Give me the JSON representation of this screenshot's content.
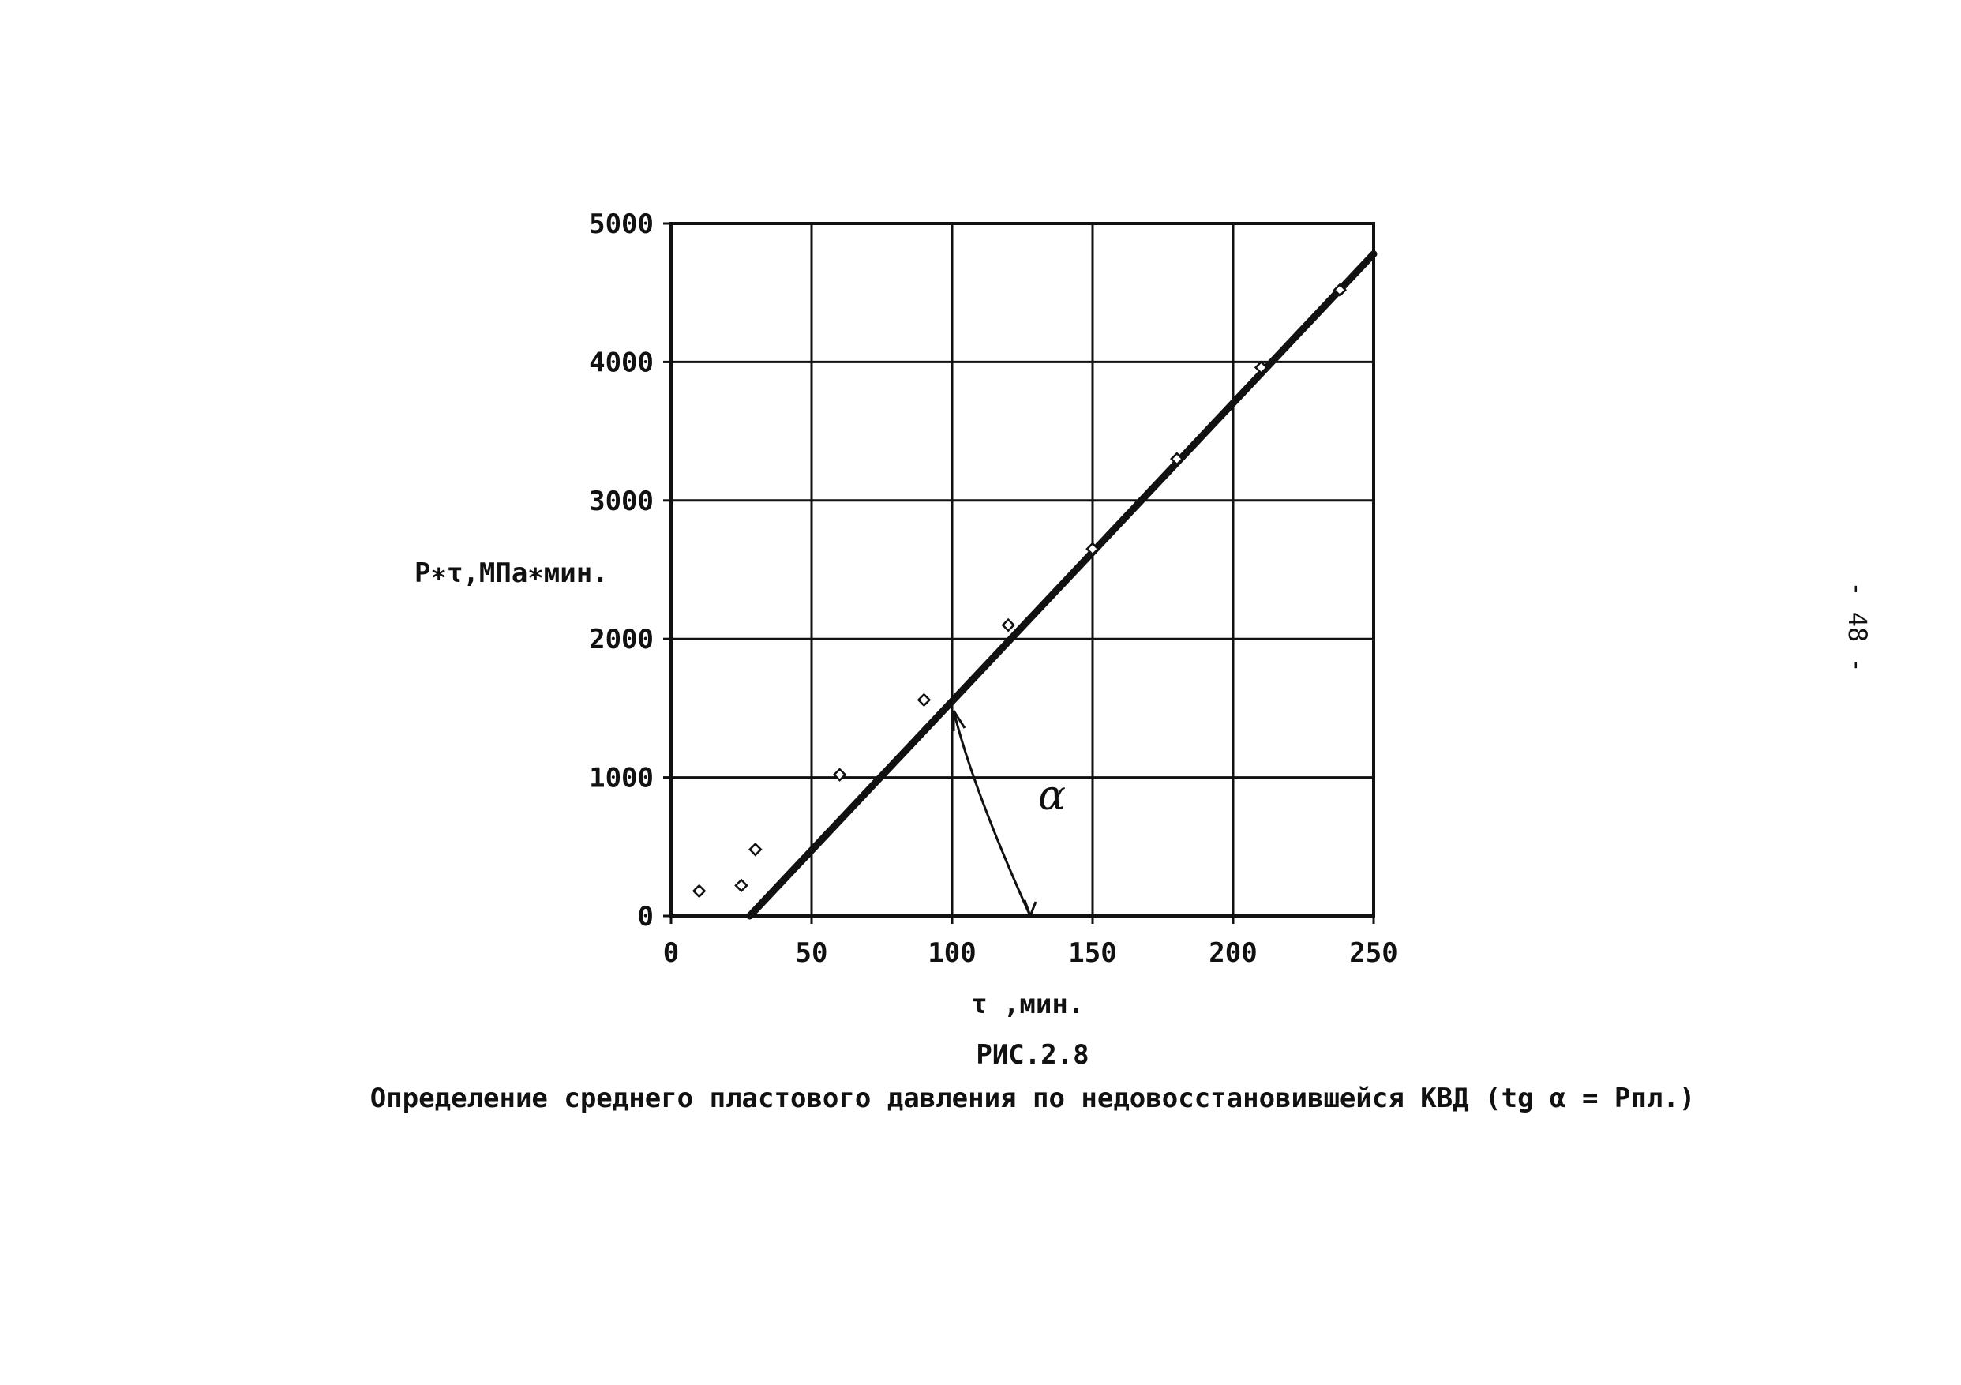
{
  "page_number": "- 48 -",
  "chart_data": {
    "type": "scatter",
    "xlabel": "τ ,мин.",
    "ylabel": "P∗τ,МПа∗мин.",
    "xlim": [
      0,
      250
    ],
    "ylim": [
      0,
      5000
    ],
    "x_ticks": [
      0,
      50,
      100,
      150,
      200,
      250
    ],
    "y_ticks": [
      0,
      1000,
      2000,
      3000,
      4000,
      5000
    ],
    "x_tick_labels": [
      "0",
      "50",
      "100",
      "150",
      "200",
      "250"
    ],
    "y_tick_labels": [
      "0",
      "1000",
      "2000",
      "3000",
      "4000",
      "5000"
    ],
    "grid": true,
    "points": [
      {
        "x": 10,
        "y": 180
      },
      {
        "x": 25,
        "y": 220
      },
      {
        "x": 30,
        "y": 480
      },
      {
        "x": 60,
        "y": 1020
      },
      {
        "x": 90,
        "y": 1560
      },
      {
        "x": 120,
        "y": 2100
      },
      {
        "x": 150,
        "y": 2650
      },
      {
        "x": 180,
        "y": 3300
      },
      {
        "x": 210,
        "y": 3960
      },
      {
        "x": 238,
        "y": 4520
      }
    ],
    "fit_line": {
      "x1": 28,
      "y1": 0,
      "x2": 250,
      "y2": 4780
    },
    "angle_symbol": "α",
    "caption_title": "РИС.2.8",
    "caption_text": "Определение среднего пластового давления по недовосстановившейся КВД (tg α = Pпл.)"
  }
}
